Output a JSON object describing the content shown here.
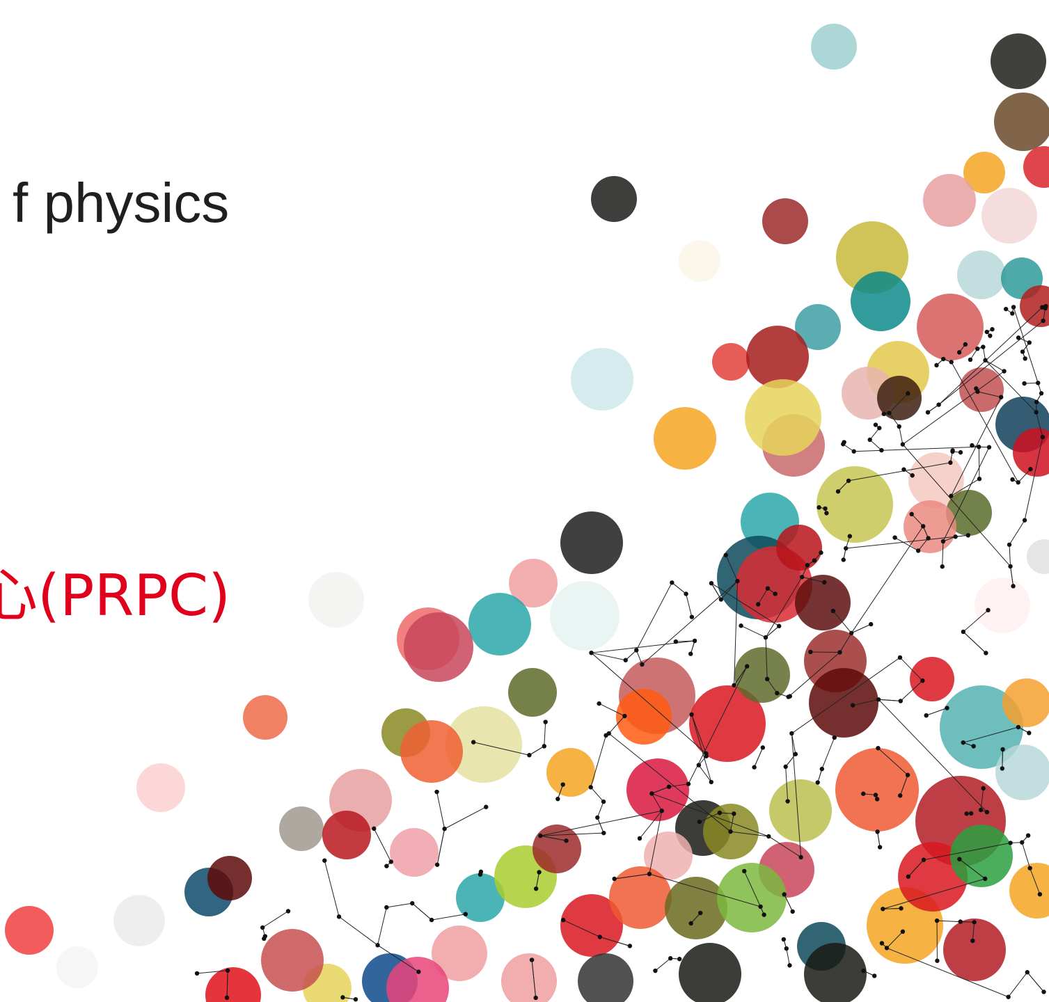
{
  "slide": {
    "title_fragment": "f physics",
    "subtitle_fragment": "心(PRPC)"
  }
}
